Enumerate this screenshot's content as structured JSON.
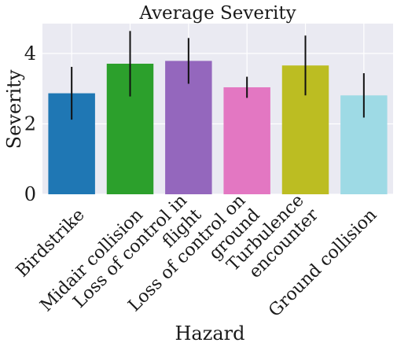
{
  "chart_data": {
    "type": "bar",
    "title": "Average Severity",
    "xlabel": "Hazard",
    "ylabel": "Severity",
    "ylim": [
      0,
      4.85
    ],
    "yticks": [
      0,
      2,
      4
    ],
    "grid": true,
    "background": "#eaeaf2",
    "categories": [
      [
        "Birdstrike"
      ],
      [
        "Midair collision"
      ],
      [
        "Loss of control in",
        "flight"
      ],
      [
        "Loss of control on",
        "ground"
      ],
      [
        "Turbulence",
        "encounter"
      ],
      [
        "Ground collision"
      ]
    ],
    "values": [
      2.87,
      3.71,
      3.79,
      3.04,
      3.66,
      2.81
    ],
    "errors": [
      0.75,
      0.93,
      0.65,
      0.3,
      0.85,
      0.63
    ],
    "colors": [
      "#1f77b4",
      "#2ca02c",
      "#9467bd",
      "#e377c2",
      "#bcbd22",
      "#9edae5"
    ]
  }
}
